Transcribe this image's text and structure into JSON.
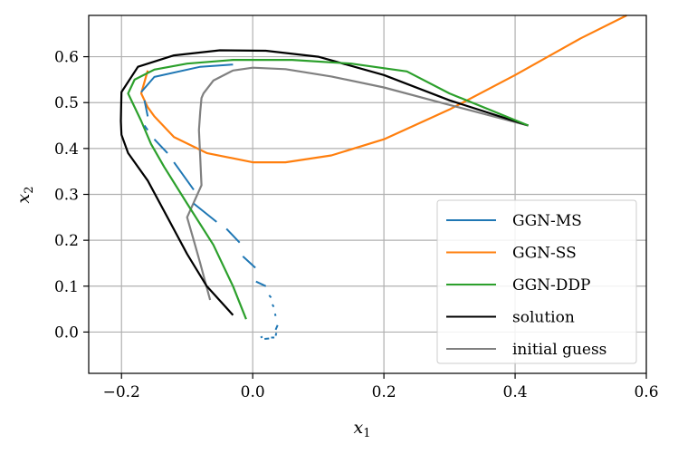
{
  "chart_data": {
    "type": "line",
    "title": "",
    "xlabel": "x",
    "xlabel_sub": "1",
    "ylabel": "x",
    "ylabel_sub": "2",
    "xlim": [
      -0.25,
      0.6
    ],
    "ylim": [
      -0.09,
      0.69
    ],
    "xticks": [
      -0.2,
      0.0,
      0.2,
      0.4,
      0.6
    ],
    "xtick_labels": [
      "−0.2",
      "0.0",
      "0.2",
      "0.4",
      "0.6"
    ],
    "yticks": [
      0.0,
      0.1,
      0.2,
      0.3,
      0.4,
      0.5,
      0.6
    ],
    "ytick_labels": [
      "0.0",
      "0.1",
      "0.2",
      "0.3",
      "0.4",
      "0.5",
      "0.6"
    ],
    "grid": true,
    "legend_position": "lower-right",
    "series": [
      {
        "name": "GGN-MS",
        "color": "#1f77b4",
        "style": "segments",
        "segments": [
          [
            [
              -0.03,
              0.583
            ],
            [
              -0.08,
              0.578
            ],
            [
              -0.15,
              0.556
            ],
            [
              -0.17,
              0.523
            ]
          ],
          [
            [
              -0.165,
              0.505
            ],
            [
              -0.16,
              0.47
            ]
          ],
          [
            [
              -0.165,
              0.45
            ],
            [
              -0.16,
              0.44
            ]
          ],
          [
            [
              -0.15,
              0.42
            ],
            [
              -0.13,
              0.39
            ]
          ],
          [
            [
              -0.12,
              0.37
            ],
            [
              -0.09,
              0.31
            ]
          ],
          [
            [
              -0.09,
              0.28
            ],
            [
              -0.055,
              0.24
            ]
          ],
          [
            [
              -0.04,
              0.225
            ],
            [
              -0.02,
              0.195
            ]
          ],
          [
            [
              -0.015,
              0.165
            ],
            [
              0.004,
              0.14
            ]
          ],
          [
            [
              0.005,
              0.11
            ],
            [
              0.02,
              0.1
            ]
          ],
          [
            [
              0.025,
              0.08
            ],
            [
              0.028,
              0.075
            ]
          ],
          [
            [
              0.03,
              0.06
            ],
            [
              0.032,
              0.055
            ]
          ],
          [
            [
              0.034,
              0.04
            ],
            [
              0.035,
              0.035
            ]
          ],
          [
            [
              0.038,
              0.015
            ],
            [
              0.035,
              0.005
            ]
          ],
          [
            [
              0.036,
              -0.002
            ],
            [
              0.035,
              -0.008
            ]
          ],
          [
            [
              0.033,
              -0.012
            ],
            [
              0.028,
              -0.012
            ]
          ],
          [
            [
              0.025,
              -0.014
            ],
            [
              0.018,
              -0.015
            ]
          ],
          [
            [
              0.015,
              -0.01
            ],
            [
              0.012,
              -0.012
            ]
          ]
        ]
      },
      {
        "name": "GGN-SS",
        "color": "#ff7f0e",
        "style": "line",
        "x": [
          -0.16,
          -0.17,
          -0.16,
          -0.15,
          -0.12,
          -0.07,
          0.0,
          0.05,
          0.12,
          0.2,
          0.3,
          0.4,
          0.5,
          0.57
        ],
        "y": [
          0.57,
          0.52,
          0.49,
          0.47,
          0.425,
          0.39,
          0.37,
          0.37,
          0.385,
          0.42,
          0.485,
          0.56,
          0.64,
          0.69
        ]
      },
      {
        "name": "GGN-DDP",
        "color": "#2ca02c",
        "style": "line",
        "x": [
          -0.01,
          -0.03,
          -0.06,
          -0.1,
          -0.135,
          -0.155,
          -0.17,
          -0.19,
          -0.18,
          -0.15,
          -0.1,
          -0.03,
          0.06,
          0.15,
          0.235,
          0.3,
          0.42
        ],
        "y": [
          0.028,
          0.1,
          0.19,
          0.28,
          0.36,
          0.41,
          0.46,
          0.52,
          0.55,
          0.572,
          0.585,
          0.593,
          0.593,
          0.585,
          0.568,
          0.52,
          0.45
        ]
      },
      {
        "name": "solution",
        "color": "#000000",
        "style": "line",
        "x": [
          -0.03,
          -0.07,
          -0.1,
          -0.13,
          -0.16,
          -0.19,
          -0.2,
          -0.201,
          -0.2,
          -0.175,
          -0.12,
          -0.05,
          0.02,
          0.1,
          0.2,
          0.3,
          0.42
        ],
        "y": [
          0.037,
          0.1,
          0.17,
          0.25,
          0.33,
          0.39,
          0.43,
          0.46,
          0.523,
          0.578,
          0.603,
          0.614,
          0.613,
          0.6,
          0.56,
          0.505,
          0.45
        ]
      },
      {
        "name": "initial guess",
        "color": "#808080",
        "style": "line",
        "x": [
          -0.065,
          -0.08,
          -0.09,
          -0.1,
          -0.078,
          -0.08,
          -0.082,
          -0.08,
          -0.078,
          -0.075,
          -0.06,
          -0.03,
          0.0,
          0.05,
          0.12,
          0.2,
          0.3,
          0.42
        ],
        "y": [
          0.07,
          0.15,
          0.2,
          0.25,
          0.32,
          0.38,
          0.44,
          0.48,
          0.51,
          0.52,
          0.548,
          0.57,
          0.576,
          0.573,
          0.557,
          0.533,
          0.495,
          0.45
        ]
      }
    ]
  }
}
